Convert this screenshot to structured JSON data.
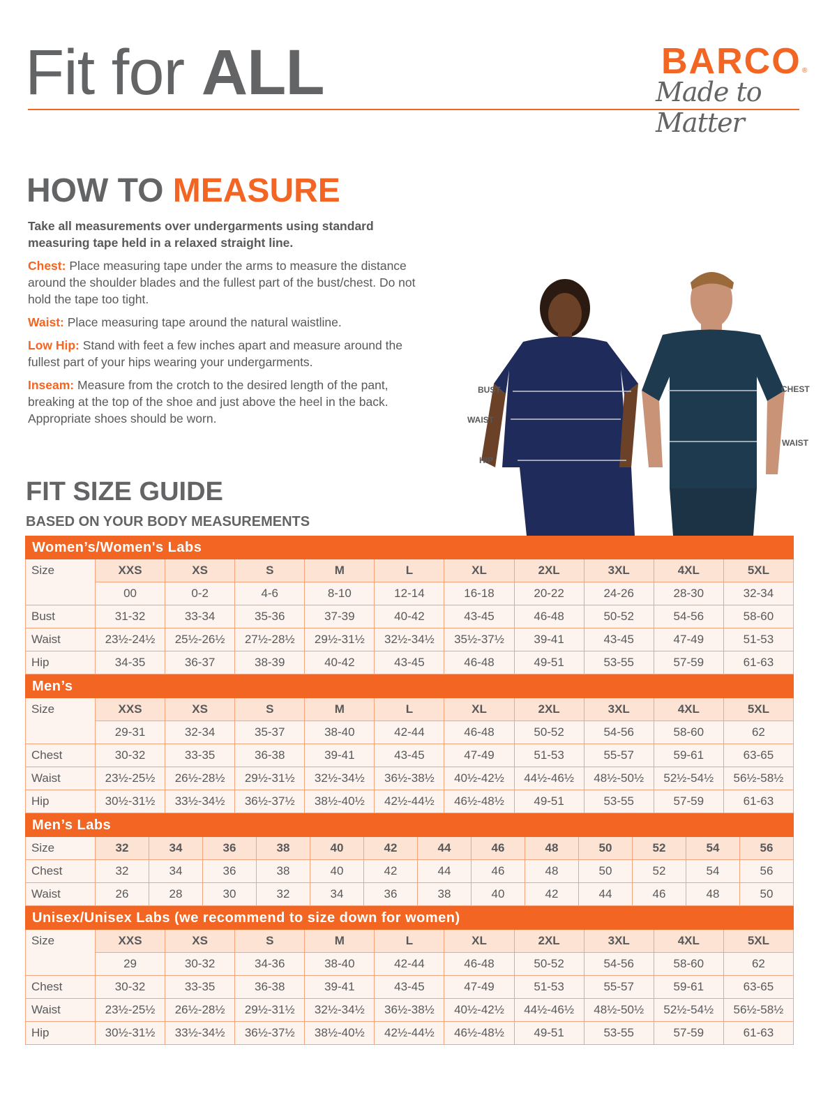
{
  "header": {
    "title_light": "Fit for ",
    "title_bold": "ALL",
    "brand": "BARCO",
    "brand_reg": "®",
    "tagline": "Made to Matter",
    "accent": "#f26522"
  },
  "how_to_measure": {
    "title_a": "HOW TO ",
    "title_b": "MEASURE",
    "lead": "Take all measurements over undergarments using standard measuring tape held in a relaxed straight line.",
    "items": [
      {
        "key": "Chest:",
        "text": "Place measuring tape under the arms to measure the distance around the shoulder blades and the fullest part of the bust/chest. Do not hold the tape too tight."
      },
      {
        "key": "Waist:",
        "text": "Place measuring tape around the natural waistline."
      },
      {
        "key": "Low Hip:",
        "text": "Stand with feet a few inches apart and measure around the fullest part of your hips wearing your undergarments."
      },
      {
        "key": "Inseam:",
        "text": "Measure from the crotch to the desired length of the pant, breaking at the top of the shoe and just above the heel in the back. Appropriate shoes should be worn."
      }
    ]
  },
  "figure_labels": {
    "bust": "BUST",
    "waist_w": "WAIST",
    "hip": "HIP",
    "chest": "CHEST",
    "waist_m": "WAIST"
  },
  "size_guide": {
    "title": "FIT SIZE GUIDE",
    "subtitle": "BASED ON YOUR BODY MEASUREMENTS"
  },
  "sections": [
    {
      "title": "Women’s/Women's Labs",
      "size_label": "Size",
      "sizes": [
        "XXS",
        "XS",
        "S",
        "M",
        "L",
        "XL",
        "2XL",
        "3XL",
        "4XL",
        "5XL"
      ],
      "sub": [
        "00",
        "0-2",
        "4-6",
        "8-10",
        "12-14",
        "16-18",
        "20-22",
        "24-26",
        "28-30",
        "32-34"
      ],
      "rows": [
        {
          "label": "Bust",
          "values": [
            "31-32",
            "33-34",
            "35-36",
            "37-39",
            "40-42",
            "43-45",
            "46-48",
            "50-52",
            "54-56",
            "58-60"
          ]
        },
        {
          "label": "Waist",
          "values": [
            "23½-24½",
            "25½-26½",
            "27½-28½",
            "29½-31½",
            "32½-34½",
            "35½-37½",
            "39-41",
            "43-45",
            "47-49",
            "51-53"
          ]
        },
        {
          "label": "Hip",
          "values": [
            "34-35",
            "36-37",
            "38-39",
            "40-42",
            "43-45",
            "46-48",
            "49-51",
            "53-55",
            "57-59",
            "61-63"
          ]
        }
      ]
    },
    {
      "title": "Men’s",
      "size_label": "Size",
      "sizes": [
        "XXS",
        "XS",
        "S",
        "M",
        "L",
        "XL",
        "2XL",
        "3XL",
        "4XL",
        "5XL"
      ],
      "sub": [
        "29-31",
        "32-34",
        "35-37",
        "38-40",
        "42-44",
        "46-48",
        "50-52",
        "54-56",
        "58-60",
        "62"
      ],
      "rows": [
        {
          "label": "Chest",
          "values": [
            "30-32",
            "33-35",
            "36-38",
            "39-41",
            "43-45",
            "47-49",
            "51-53",
            "55-57",
            "59-61",
            "63-65"
          ]
        },
        {
          "label": "Waist",
          "values": [
            "23½-25½",
            "26½-28½",
            "29½-31½",
            "32½-34½",
            "36½-38½",
            "40½-42½",
            "44½-46½",
            "48½-50½",
            "52½-54½",
            "56½-58½"
          ]
        },
        {
          "label": "Hip",
          "values": [
            "30½-31½",
            "33½-34½",
            "36½-37½",
            "38½-40½",
            "42½-44½",
            "46½-48½",
            "49-51",
            "53-55",
            "57-59",
            "61-63"
          ]
        }
      ]
    },
    {
      "title": "Men’s Labs",
      "size_label": "Size",
      "sizes": [
        "32",
        "34",
        "36",
        "38",
        "40",
        "42",
        "44",
        "46",
        "48",
        "50",
        "52",
        "54",
        "56"
      ],
      "rows": [
        {
          "label": "Chest",
          "values": [
            "32",
            "34",
            "36",
            "38",
            "40",
            "42",
            "44",
            "46",
            "48",
            "50",
            "52",
            "54",
            "56"
          ]
        },
        {
          "label": "Waist",
          "values": [
            "26",
            "28",
            "30",
            "32",
            "34",
            "36",
            "38",
            "40",
            "42",
            "44",
            "46",
            "48",
            "50"
          ]
        }
      ]
    },
    {
      "title": "Unisex/Unisex Labs (we recommend to size down for women)",
      "size_label": "Size",
      "sizes": [
        "XXS",
        "XS",
        "S",
        "M",
        "L",
        "XL",
        "2XL",
        "3XL",
        "4XL",
        "5XL"
      ],
      "sub": [
        "29",
        "30-32",
        "34-36",
        "38-40",
        "42-44",
        "46-48",
        "50-52",
        "54-56",
        "58-60",
        "62"
      ],
      "rows": [
        {
          "label": "Chest",
          "values": [
            "30-32",
            "33-35",
            "36-38",
            "39-41",
            "43-45",
            "47-49",
            "51-53",
            "55-57",
            "59-61",
            "63-65"
          ]
        },
        {
          "label": "Waist",
          "values": [
            "23½-25½",
            "26½-28½",
            "29½-31½",
            "32½-34½",
            "36½-38½",
            "40½-42½",
            "44½-46½",
            "48½-50½",
            "52½-54½",
            "56½-58½"
          ]
        },
        {
          "label": "Hip",
          "values": [
            "30½-31½",
            "33½-34½",
            "36½-37½",
            "38½-40½",
            "42½-44½",
            "46½-48½",
            "49-51",
            "53-55",
            "57-59",
            "61-63"
          ]
        }
      ]
    }
  ]
}
